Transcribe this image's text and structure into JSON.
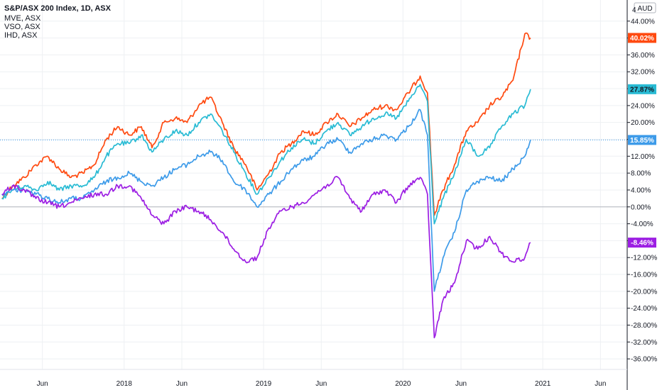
{
  "legend": {
    "title": "S&P/ASX 200 Index, 1D, ASX",
    "compare": [
      "MVE, ASX",
      "VSO, ASX",
      "IHD, ASX"
    ]
  },
  "axis": {
    "currency": "AUD",
    "top_partial_tick": "4",
    "zero_line_color": "#b2b5be",
    "grid_color": "#eef0f3"
  },
  "chart_data": {
    "type": "line",
    "x_ticks": [
      "Jun",
      "2018",
      "Jun",
      "2019",
      "Jun",
      "2020",
      "Jun",
      "2021",
      "Jun"
    ],
    "y_ticks": [
      44,
      40,
      36,
      32,
      28,
      24,
      20,
      16,
      12,
      8,
      4,
      0,
      -4,
      -8,
      -12,
      -16,
      -20,
      -24,
      -28,
      -32,
      -36
    ],
    "y_tick_labels": [
      "44.00%",
      "40.00%",
      "36.00%",
      "32.00%",
      "28.00%",
      "24.00%",
      "20.00%",
      "16.00%",
      "12.00%",
      "8.00%",
      "4.00%",
      "0.00%",
      "-4.00%",
      "-8.00%",
      "-12.00%",
      "-16.00%",
      "-20.00%",
      "-24.00%",
      "-28.00%",
      "-32.00%",
      "-36.00%"
    ],
    "ylim": [
      -38.5,
      49
    ],
    "xlim": [
      "2017-02-10",
      "2021-08-10"
    ],
    "y_unit": "%",
    "grid": true,
    "series": [
      {
        "name": "MVE, ASX",
        "color": "#ff4a10",
        "last_label": "40.02%",
        "x": [
          "2017-02-15",
          "2017-03-15",
          "2017-04-15",
          "2017-05-15",
          "2017-06-15",
          "2017-07-15",
          "2017-08-15",
          "2017-09-15",
          "2017-10-15",
          "2017-11-15",
          "2017-12-15",
          "2018-01-15",
          "2018-02-15",
          "2018-03-15",
          "2018-04-15",
          "2018-05-15",
          "2018-06-15",
          "2018-07-15",
          "2018-08-15",
          "2018-09-15",
          "2018-10-15",
          "2018-11-15",
          "2018-12-15",
          "2019-01-15",
          "2019-02-15",
          "2019-03-15",
          "2019-04-15",
          "2019-05-15",
          "2019-06-15",
          "2019-07-15",
          "2019-08-15",
          "2019-09-15",
          "2019-10-15",
          "2019-11-15",
          "2019-12-15",
          "2020-01-15",
          "2020-02-15",
          "2020-03-05",
          "2020-03-23",
          "2020-04-15",
          "2020-05-15",
          "2020-06-15",
          "2020-07-15",
          "2020-08-15",
          "2020-09-15",
          "2020-10-15",
          "2020-11-15",
          "2020-11-30"
        ],
        "y": [
          2,
          5,
          7,
          10,
          12,
          9,
          7,
          8,
          10,
          16,
          19,
          17,
          19,
          14,
          20,
          21,
          20,
          24,
          26,
          20,
          14,
          10,
          4,
          8,
          13,
          15,
          18,
          17,
          20,
          22,
          19,
          21,
          23,
          24,
          23,
          27,
          31,
          27,
          -2,
          4,
          10,
          18,
          20,
          24,
          26,
          30,
          41,
          40.02
        ]
      },
      {
        "name": "VSO, ASX",
        "color": "#29bbd4",
        "last_label": "27.87%",
        "x": [
          "2017-02-15",
          "2017-03-15",
          "2017-04-15",
          "2017-05-15",
          "2017-06-15",
          "2017-07-15",
          "2017-08-15",
          "2017-09-15",
          "2017-10-15",
          "2017-11-15",
          "2017-12-15",
          "2018-01-15",
          "2018-02-15",
          "2018-03-15",
          "2018-04-15",
          "2018-05-15",
          "2018-06-15",
          "2018-07-15",
          "2018-08-15",
          "2018-09-15",
          "2018-10-15",
          "2018-11-15",
          "2018-12-15",
          "2019-01-15",
          "2019-02-15",
          "2019-03-15",
          "2019-04-15",
          "2019-05-15",
          "2019-06-15",
          "2019-07-15",
          "2019-08-15",
          "2019-09-15",
          "2019-10-15",
          "2019-11-15",
          "2019-12-15",
          "2020-01-15",
          "2020-02-15",
          "2020-03-05",
          "2020-03-23",
          "2020-04-15",
          "2020-05-15",
          "2020-06-15",
          "2020-07-15",
          "2020-08-15",
          "2020-09-15",
          "2020-10-15",
          "2020-11-15",
          "2020-11-30"
        ],
        "y": [
          2,
          4,
          5,
          4,
          6,
          4,
          5,
          5,
          7,
          12,
          15,
          15,
          17,
          13,
          16,
          18,
          17,
          20,
          22,
          18,
          13,
          8,
          3,
          7,
          11,
          14,
          16,
          15,
          18,
          20,
          17,
          19,
          21,
          22,
          21,
          25,
          29,
          25,
          -4,
          2,
          8,
          16,
          12,
          14,
          19,
          22,
          24,
          27.87
        ]
      },
      {
        "name": "S&P/ASX 200 Index, 1D, ASX",
        "color": "#3d9be9",
        "last_label": "15.85%",
        "x": [
          "2017-02-15",
          "2017-03-15",
          "2017-04-15",
          "2017-05-15",
          "2017-06-15",
          "2017-07-15",
          "2017-08-15",
          "2017-09-15",
          "2017-10-15",
          "2017-11-15",
          "2017-12-15",
          "2018-01-15",
          "2018-02-15",
          "2018-03-15",
          "2018-04-15",
          "2018-05-15",
          "2018-06-15",
          "2018-07-15",
          "2018-08-15",
          "2018-09-15",
          "2018-10-15",
          "2018-11-15",
          "2018-12-15",
          "2019-01-15",
          "2019-02-15",
          "2019-03-15",
          "2019-04-15",
          "2019-05-15",
          "2019-06-15",
          "2019-07-15",
          "2019-08-15",
          "2019-09-15",
          "2019-10-15",
          "2019-11-15",
          "2019-12-15",
          "2020-01-15",
          "2020-02-15",
          "2020-03-05",
          "2020-03-23",
          "2020-04-15",
          "2020-05-15",
          "2020-06-15",
          "2020-07-15",
          "2020-08-15",
          "2020-09-15",
          "2020-10-15",
          "2020-11-15",
          "2020-11-30"
        ],
        "y": [
          3,
          4,
          4,
          3,
          2,
          1,
          2,
          2,
          4,
          6,
          7,
          8,
          6,
          5,
          7,
          9,
          10,
          12,
          13,
          11,
          6,
          4,
          0,
          3,
          6,
          9,
          11,
          12,
          15,
          16,
          13,
          15,
          16,
          17,
          16,
          19,
          23,
          17,
          -20,
          -12,
          -6,
          4,
          6,
          7,
          6,
          9,
          12,
          15.85
        ]
      },
      {
        "name": "IHD, ASX",
        "color": "#9c1ee3",
        "last_label": "-8.46%",
        "x": [
          "2017-02-15",
          "2017-03-15",
          "2017-04-15",
          "2017-05-15",
          "2017-06-15",
          "2017-07-15",
          "2017-08-15",
          "2017-09-15",
          "2017-10-15",
          "2017-11-15",
          "2017-12-15",
          "2018-01-15",
          "2018-02-15",
          "2018-03-15",
          "2018-04-15",
          "2018-05-15",
          "2018-06-15",
          "2018-07-15",
          "2018-08-15",
          "2018-09-15",
          "2018-10-15",
          "2018-11-15",
          "2018-12-15",
          "2019-01-15",
          "2019-02-15",
          "2019-03-15",
          "2019-04-15",
          "2019-05-15",
          "2019-06-15",
          "2019-07-15",
          "2019-08-15",
          "2019-09-15",
          "2019-10-15",
          "2019-11-15",
          "2019-12-15",
          "2020-01-15",
          "2020-02-15",
          "2020-03-05",
          "2020-03-23",
          "2020-04-15",
          "2020-05-15",
          "2020-06-15",
          "2020-07-15",
          "2020-08-15",
          "2020-09-15",
          "2020-10-15",
          "2020-11-15",
          "2020-11-30"
        ],
        "y": [
          3,
          5,
          4,
          2,
          1,
          0,
          1,
          2,
          3,
          3,
          5,
          5,
          2,
          -2,
          -4,
          -1,
          0,
          -1,
          -3,
          -6,
          -10,
          -13,
          -12,
          -5,
          -1,
          0,
          1,
          3,
          5,
          7,
          2,
          -1,
          3,
          4,
          1,
          5,
          7,
          3,
          -31,
          -22,
          -18,
          -8,
          -10,
          -7,
          -11,
          -13,
          -12,
          -8.46
        ]
      }
    ]
  }
}
